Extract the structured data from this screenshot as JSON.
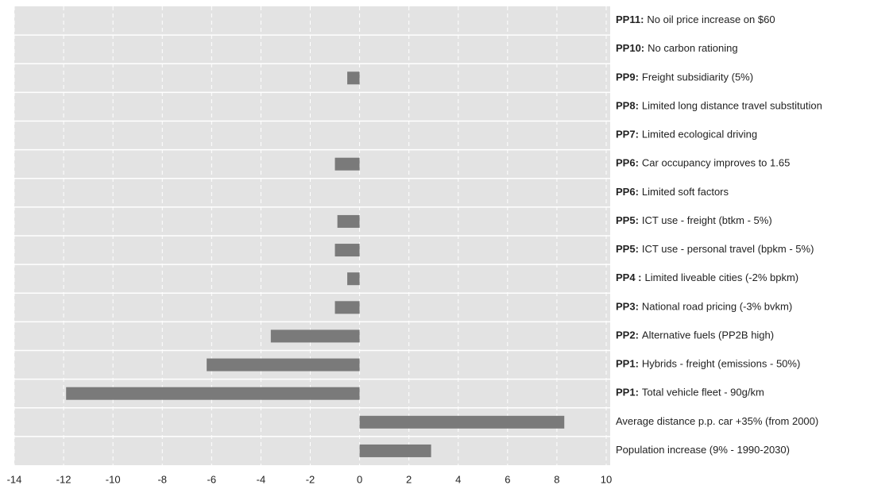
{
  "chart_data": {
    "type": "barh",
    "categories": [
      {
        "code": "PP11:",
        "text": "No oil price increase on $60"
      },
      {
        "code": "PP10:",
        "text": "No carbon rationing"
      },
      {
        "code": "PP9:",
        "text": "Freight subsidiarity (5%)"
      },
      {
        "code": "PP8:",
        "text": "Limited long distance travel substitution"
      },
      {
        "code": "PP7:",
        "text": "Limited ecological driving"
      },
      {
        "code": "PP6:",
        "text": "Car occupancy improves to 1.65"
      },
      {
        "code": "PP6:",
        "text": "Limited soft factors"
      },
      {
        "code": "PP5:",
        "text": "ICT use - freight (btkm - 5%)"
      },
      {
        "code": "PP5:",
        "text": "ICT use - personal travel (bpkm - 5%)"
      },
      {
        "code": "PP4 :",
        "text": "Limited liveable cities (-2% bpkm)"
      },
      {
        "code": "PP3:",
        "text": "National road pricing (-3% bvkm)"
      },
      {
        "code": "PP2:",
        "text": "Alternative fuels (PP2B high)"
      },
      {
        "code": "PP1:",
        "text": "Hybrids - freight (emissions - 50%)"
      },
      {
        "code": "PP1:",
        "text": "Total vehicle fleet - 90g/km"
      },
      {
        "text": "Average distance p.p. car +35% (from 2000)"
      },
      {
        "text": "Population increase (9% - 1990-2030)"
      }
    ],
    "values": [
      0,
      0,
      -0.5,
      0,
      0,
      -1.0,
      0,
      -0.9,
      -1.0,
      -0.5,
      -1.0,
      -3.6,
      -6.2,
      -11.9,
      8.3,
      2.9
    ],
    "color": "#7a7a7a",
    "background": "#e3e3e3",
    "xlim": [
      -14,
      10
    ],
    "xticks": [
      -14,
      -12,
      -10,
      -8,
      -6,
      -4,
      -2,
      0,
      2,
      4,
      6,
      8,
      10
    ],
    "grid": true
  }
}
